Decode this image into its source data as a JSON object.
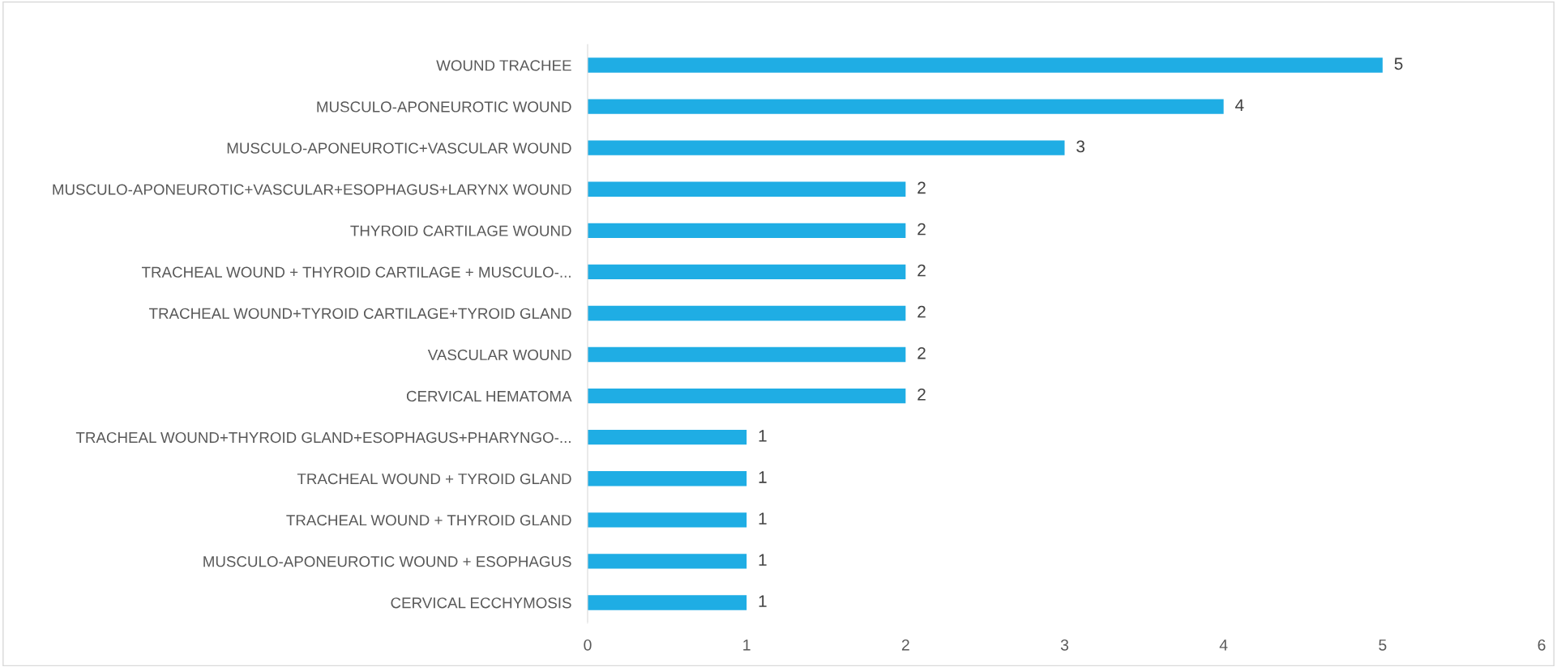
{
  "chart_data": {
    "type": "bar",
    "orientation": "horizontal",
    "categories": [
      "WOUND TRACHEE",
      "MUSCULO-APONEUROTIC WOUND",
      "MUSCULO-APONEUROTIC+VASCULAR WOUND",
      "MUSCULO-APONEUROTIC+VASCULAR+ESOPHAGUS+LARYNX WOUND",
      "THYROID CARTILAGE WOUND",
      "TRACHEAL WOUND + THYROID CARTILAGE + MUSCULO-...",
      "TRACHEAL WOUND+TYROID CARTILAGE+TYROID GLAND",
      "VASCULAR WOUND",
      "CERVICAL HEMATOMA",
      "TRACHEAL WOUND+THYROID GLAND+ESOPHAGUS+PHARYNGO-...",
      "TRACHEAL WOUND + TYROID GLAND",
      "TRACHEAL WOUND + THYROID GLAND",
      "MUSCULO-APONEUROTIC WOUND + ESOPHAGUS",
      "CERVICAL ECCHYMOSIS"
    ],
    "values": [
      5,
      4,
      3,
      2,
      2,
      2,
      2,
      2,
      2,
      1,
      1,
      1,
      1,
      1
    ],
    "color": "#1fade4",
    "xlim": [
      0,
      6
    ],
    "xticks": [
      0,
      1,
      2,
      3,
      4,
      5,
      6
    ],
    "data_labels": true,
    "grid": false,
    "legend": false
  }
}
